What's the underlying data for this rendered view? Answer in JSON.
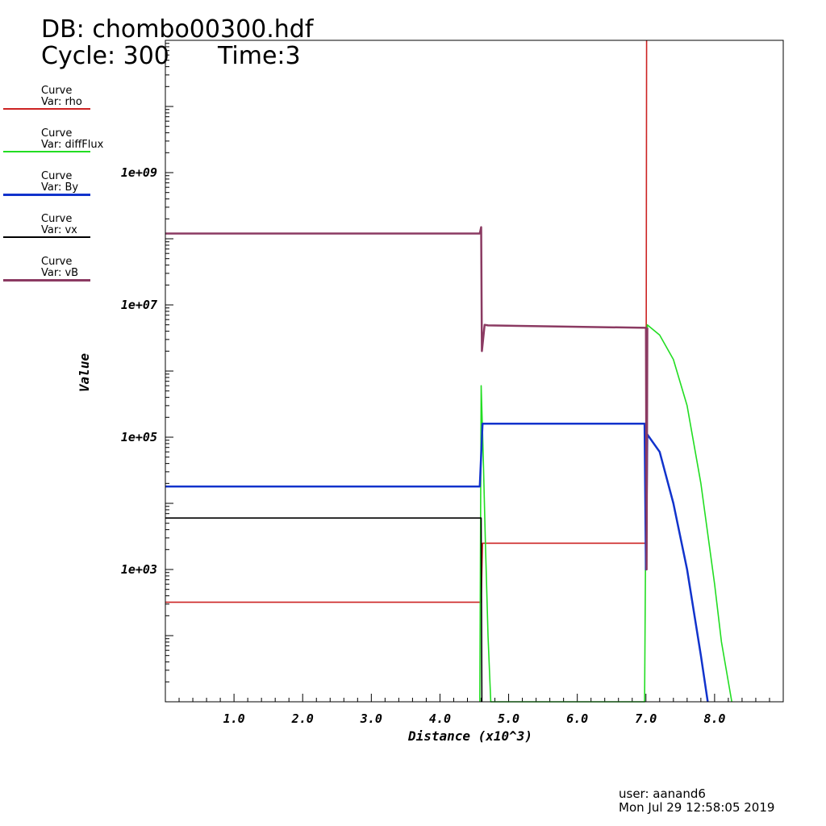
{
  "header": {
    "db": "DB: chombo00300.hdf",
    "cycle": "Cycle: 300",
    "time": "Time:3"
  },
  "legend": [
    {
      "l1": "Curve",
      "l2": "Var: rho",
      "color": "#cc2222"
    },
    {
      "l1": "Curve",
      "l2": "Var: diffFlux",
      "color": "#22dd22"
    },
    {
      "l1": "Curve",
      "l2": "Var: By",
      "color": "#1133cc"
    },
    {
      "l1": "Curve",
      "l2": "Var: vx",
      "color": "#000000"
    },
    {
      "l1": "Curve",
      "l2": "Var: vB",
      "color": "#8b3a62"
    }
  ],
  "footer": {
    "user": "user: aanand6",
    "date": "Mon Jul 29 12:58:05 2019"
  },
  "chart_data": {
    "type": "line",
    "xlabel": "Distance (x10^3)",
    "ylabel": "Value",
    "xlim": [
      0,
      9
    ],
    "ylog": true,
    "ylim": [
      10,
      100000000000
    ],
    "grid": false,
    "xticks": [
      "1.0",
      "2.0",
      "3.0",
      "4.0",
      "5.0",
      "6.0",
      "7.0",
      "8.0"
    ],
    "yticks": [
      "1e+03",
      "1e+05",
      "1e+07",
      "1e+09"
    ],
    "series": [
      {
        "name": "rho",
        "color": "#cc2222",
        "points": [
          [
            0,
            320
          ],
          [
            4.6,
            320
          ],
          [
            4.62,
            2500
          ],
          [
            6.98,
            2500
          ],
          [
            7.0,
            2500
          ],
          [
            7.01,
            100000000000
          ]
        ]
      },
      {
        "name": "diffFlux",
        "color": "#22dd22",
        "points": [
          [
            4.58,
            10
          ],
          [
            4.6,
            600000
          ],
          [
            4.63,
            50000
          ],
          [
            4.66,
            3000
          ],
          [
            4.7,
            100
          ],
          [
            4.74,
            10
          ],
          [
            6.98,
            10
          ],
          [
            7.0,
            15000
          ],
          [
            7.02,
            5000000
          ],
          [
            7.2,
            3500000
          ],
          [
            7.4,
            1500000
          ],
          [
            7.6,
            300000
          ],
          [
            7.8,
            20000
          ],
          [
            8.0,
            600
          ],
          [
            8.1,
            80
          ],
          [
            8.25,
            10
          ]
        ]
      },
      {
        "name": "By",
        "color": "#1133cc",
        "points": [
          [
            0,
            18000
          ],
          [
            4.58,
            18000
          ],
          [
            4.62,
            160000
          ],
          [
            6.98,
            160000
          ],
          [
            7.0,
            1000
          ],
          [
            7.02,
            110000
          ],
          [
            7.2,
            60000
          ],
          [
            7.4,
            10000
          ],
          [
            7.6,
            1000
          ],
          [
            7.8,
            50
          ],
          [
            7.9,
            10
          ]
        ]
      },
      {
        "name": "vx",
        "color": "#000000",
        "points": [
          [
            0,
            6000
          ],
          [
            4.6,
            6000
          ],
          [
            4.61,
            10
          ]
        ]
      },
      {
        "name": "vB",
        "color": "#8b3a62",
        "points": [
          [
            0,
            120000000
          ],
          [
            4.58,
            120000000
          ],
          [
            4.6,
            150000000
          ],
          [
            4.61,
            2000000
          ],
          [
            4.65,
            5000000
          ],
          [
            4.7,
            4900000
          ],
          [
            7.0,
            4500000
          ],
          [
            7.01,
            1000
          ],
          [
            7.02,
            4500000
          ]
        ]
      }
    ]
  }
}
